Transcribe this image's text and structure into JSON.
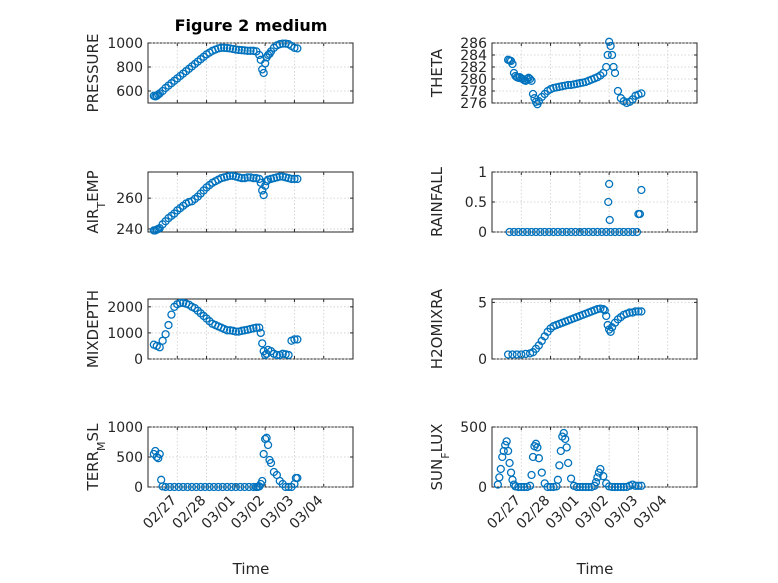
{
  "figure": {
    "title": "Figure 2 medium",
    "xlabel": "Time",
    "series_color": "#0072BD"
  },
  "chart_data": [
    {
      "id": "pressure",
      "type": "scatter",
      "ylabel": "PRESSURE",
      "ylim": [
        500,
        1000
      ],
      "yticks": [
        600,
        800,
        1000
      ],
      "xlim": [
        0,
        7
      ],
      "grid": true,
      "xtick_labels": [
        "02/27",
        "02/28",
        "03/01",
        "03/02",
        "03/03",
        "03/04"
      ],
      "x": [
        0.2,
        0.25,
        0.3,
        0.35,
        0.4,
        0.5,
        0.6,
        0.7,
        0.8,
        0.9,
        1.0,
        1.1,
        1.2,
        1.3,
        1.4,
        1.5,
        1.6,
        1.7,
        1.8,
        1.9,
        2.0,
        2.1,
        2.2,
        2.3,
        2.4,
        2.5,
        2.6,
        2.7,
        2.8,
        2.9,
        3.0,
        3.1,
        3.2,
        3.3,
        3.4,
        3.5,
        3.6,
        3.7,
        3.8,
        3.85,
        3.9,
        3.95,
        4.0,
        4.05,
        4.1,
        4.15,
        4.2,
        4.3,
        4.4,
        4.5,
        4.6,
        4.7,
        4.8,
        4.9,
        5.0,
        5.1
      ],
      "y": [
        560,
        555,
        560,
        570,
        580,
        600,
        625,
        645,
        665,
        685,
        705,
        725,
        745,
        765,
        785,
        805,
        825,
        845,
        865,
        885,
        905,
        920,
        935,
        945,
        955,
        960,
        960,
        958,
        955,
        950,
        945,
        942,
        940,
        938,
        935,
        935,
        935,
        930,
        900,
        860,
        780,
        750,
        830,
        880,
        900,
        910,
        930,
        960,
        980,
        990,
        995,
        995,
        990,
        975,
        960,
        955
      ]
    },
    {
      "id": "theta",
      "type": "scatter",
      "ylabel": "THETA",
      "ylim": [
        276,
        286
      ],
      "yticks": [
        276,
        278,
        280,
        282,
        284,
        286
      ],
      "xlim": [
        0,
        7
      ],
      "grid": true,
      "xtick_labels": [
        "02/27",
        "02/28",
        "03/01",
        "03/02",
        "03/03",
        "03/04"
      ],
      "x": [
        0.55,
        0.6,
        0.65,
        0.7,
        0.75,
        0.8,
        0.85,
        0.9,
        0.95,
        1.0,
        1.05,
        1.1,
        1.15,
        1.2,
        1.25,
        1.3,
        1.35,
        1.4,
        1.45,
        1.5,
        1.55,
        1.6,
        1.7,
        1.8,
        1.9,
        2.0,
        2.1,
        2.2,
        2.3,
        2.4,
        2.5,
        2.6,
        2.7,
        2.8,
        2.9,
        3.0,
        3.1,
        3.2,
        3.3,
        3.4,
        3.5,
        3.6,
        3.7,
        3.8,
        3.9,
        3.95,
        4.0,
        4.05,
        4.1,
        4.15,
        4.2,
        4.3,
        4.4,
        4.5,
        4.6,
        4.7,
        4.8,
        4.9,
        5.0,
        5.1
      ],
      "y": [
        283.2,
        283.1,
        283.0,
        282.5,
        281.0,
        280.5,
        280.3,
        280.2,
        280.3,
        280.1,
        280.0,
        279.8,
        279.7,
        280.0,
        280.2,
        280.0,
        279.7,
        277.5,
        276.8,
        276.2,
        275.8,
        276.3,
        277.0,
        277.5,
        278.0,
        278.3,
        278.5,
        278.6,
        278.7,
        278.8,
        278.9,
        279.0,
        279.0,
        279.1,
        279.2,
        279.3,
        279.4,
        279.5,
        279.7,
        279.9,
        280.1,
        280.3,
        280.6,
        281.0,
        282.0,
        284.0,
        286.2,
        285.5,
        284.0,
        282.0,
        281.0,
        278.0,
        276.8,
        276.3,
        276.0,
        276.2,
        276.6,
        277.2,
        277.4,
        277.6
      ]
    },
    {
      "id": "air_temp",
      "type": "scatter",
      "ylabel": "AIR_TEMP",
      "ylim": [
        238,
        277
      ],
      "yticks": [
        240,
        260
      ],
      "xlim": [
        0,
        7
      ],
      "grid": true,
      "xtick_labels": [
        "02/27",
        "02/28",
        "03/01",
        "03/02",
        "03/03",
        "03/04"
      ],
      "x": [
        0.2,
        0.25,
        0.3,
        0.35,
        0.4,
        0.5,
        0.6,
        0.7,
        0.8,
        0.9,
        1.0,
        1.1,
        1.2,
        1.3,
        1.4,
        1.5,
        1.6,
        1.7,
        1.8,
        1.9,
        2.0,
        2.1,
        2.2,
        2.3,
        2.4,
        2.5,
        2.6,
        2.7,
        2.8,
        2.9,
        3.0,
        3.1,
        3.2,
        3.3,
        3.4,
        3.5,
        3.6,
        3.7,
        3.8,
        3.85,
        3.9,
        3.95,
        4.0,
        4.05,
        4.1,
        4.2,
        4.3,
        4.4,
        4.5,
        4.6,
        4.7,
        4.8,
        4.9,
        5.0,
        5.1
      ],
      "y": [
        239,
        239,
        239.5,
        240,
        240.5,
        243,
        245,
        247,
        248.5,
        250,
        252,
        253.5,
        255,
        256.5,
        257.5,
        258,
        259.5,
        261,
        263,
        265,
        267,
        268.5,
        270,
        271,
        272,
        273,
        273.5,
        274,
        274.5,
        274.5,
        274,
        273.5,
        273,
        273,
        273.5,
        273.5,
        273,
        273,
        272.5,
        270,
        265,
        262,
        268,
        271,
        272,
        272.5,
        273,
        273.5,
        274,
        274,
        273.5,
        273,
        272.5,
        272.5,
        272.5
      ]
    },
    {
      "id": "rainfall",
      "type": "scatter",
      "ylabel": "RAINFALL",
      "ylim": [
        0,
        1
      ],
      "yticks": [
        0,
        0.5,
        1
      ],
      "xlim": [
        0,
        7
      ],
      "grid": true,
      "xtick_labels": [
        "02/27",
        "02/28",
        "03/01",
        "03/02",
        "03/03",
        "03/04"
      ],
      "x": [
        0.6,
        0.75,
        0.9,
        1.05,
        1.2,
        1.35,
        1.5,
        1.65,
        1.8,
        1.95,
        2.1,
        2.25,
        2.4,
        2.55,
        2.7,
        2.85,
        3.0,
        3.15,
        3.3,
        3.45,
        3.6,
        3.75,
        3.9,
        3.97,
        4.0,
        4.02,
        4.05,
        4.2,
        4.35,
        4.5,
        4.65,
        4.8,
        4.95,
        5.0,
        5.05,
        5.1
      ],
      "y": [
        0,
        0,
        0,
        0,
        0,
        0,
        0,
        0,
        0,
        0,
        0,
        0,
        0,
        0,
        0,
        0,
        0,
        0,
        0,
        0,
        0,
        0,
        0,
        0.5,
        0.8,
        0.2,
        0,
        0,
        0,
        0,
        0,
        0,
        0,
        0.3,
        0.3,
        0.7
      ]
    },
    {
      "id": "mixdepth",
      "type": "scatter",
      "ylabel": "MIXDEPTH",
      "ylim": [
        0,
        2300
      ],
      "yticks": [
        0,
        1000,
        2000
      ],
      "xlim": [
        0,
        7
      ],
      "grid": true,
      "xtick_labels": [
        "02/27",
        "02/28",
        "03/01",
        "03/02",
        "03/03",
        "03/04"
      ],
      "x": [
        0.2,
        0.3,
        0.4,
        0.5,
        0.6,
        0.7,
        0.8,
        0.9,
        1.0,
        1.1,
        1.2,
        1.3,
        1.4,
        1.5,
        1.6,
        1.7,
        1.8,
        1.9,
        2.0,
        2.1,
        2.2,
        2.3,
        2.4,
        2.5,
        2.6,
        2.7,
        2.8,
        2.9,
        3.0,
        3.1,
        3.2,
        3.3,
        3.4,
        3.5,
        3.6,
        3.7,
        3.8,
        3.85,
        3.9,
        3.95,
        4.0,
        4.05,
        4.1,
        4.2,
        4.3,
        4.4,
        4.5,
        4.6,
        4.7,
        4.8,
        4.9,
        5.0,
        5.1
      ],
      "y": [
        550,
        500,
        450,
        700,
        950,
        1300,
        1700,
        2000,
        2100,
        2150,
        2150,
        2120,
        2080,
        2000,
        1950,
        1850,
        1750,
        1650,
        1550,
        1450,
        1350,
        1300,
        1250,
        1200,
        1150,
        1100,
        1100,
        1080,
        1050,
        1050,
        1080,
        1100,
        1120,
        1150,
        1180,
        1200,
        1200,
        1000,
        600,
        300,
        150,
        200,
        350,
        300,
        200,
        150,
        150,
        200,
        180,
        150,
        700,
        750,
        750
      ]
    },
    {
      "id": "h2omixra",
      "type": "scatter",
      "ylabel": "H2OMIXRA",
      "ylim": [
        0,
        5.3
      ],
      "yticks": [
        0,
        5
      ],
      "xlim": [
        0,
        7
      ],
      "grid": true,
      "xtick_labels": [
        "02/27",
        "02/28",
        "03/01",
        "03/02",
        "03/03",
        "03/04"
      ],
      "x": [
        0.55,
        0.7,
        0.85,
        1.0,
        1.15,
        1.3,
        1.4,
        1.5,
        1.6,
        1.7,
        1.8,
        1.9,
        2.0,
        2.1,
        2.2,
        2.3,
        2.4,
        2.5,
        2.6,
        2.7,
        2.8,
        2.9,
        3.0,
        3.1,
        3.2,
        3.3,
        3.4,
        3.5,
        3.6,
        3.7,
        3.8,
        3.85,
        3.9,
        3.95,
        4.0,
        4.05,
        4.1,
        4.2,
        4.3,
        4.4,
        4.5,
        4.6,
        4.7,
        4.8,
        4.9,
        5.0,
        5.1
      ],
      "y": [
        0.4,
        0.4,
        0.4,
        0.4,
        0.45,
        0.5,
        0.6,
        0.9,
        1.2,
        1.6,
        2.0,
        2.4,
        2.7,
        2.9,
        3.0,
        3.1,
        3.2,
        3.3,
        3.4,
        3.5,
        3.6,
        3.7,
        3.8,
        3.9,
        4.0,
        4.1,
        4.2,
        4.3,
        4.4,
        4.45,
        4.4,
        4.3,
        3.8,
        3.0,
        2.6,
        2.4,
        2.8,
        3.2,
        3.5,
        3.7,
        3.9,
        4.0,
        4.1,
        4.1,
        4.2,
        4.2,
        4.2
      ]
    },
    {
      "id": "terr_msl",
      "type": "scatter",
      "ylabel": "TERR_MSL",
      "ylim": [
        0,
        1000
      ],
      "yticks": [
        0,
        500,
        1000
      ],
      "xlim": [
        0,
        7
      ],
      "grid": true,
      "xtick_labels": [
        "02/27",
        "02/28",
        "03/01",
        "03/02",
        "03/03",
        "03/04"
      ],
      "x": [
        0.2,
        0.25,
        0.3,
        0.35,
        0.4,
        0.45,
        0.5,
        0.6,
        0.75,
        0.9,
        1.05,
        1.2,
        1.35,
        1.5,
        1.65,
        1.8,
        1.95,
        2.1,
        2.25,
        2.4,
        2.55,
        2.7,
        2.85,
        3.0,
        3.15,
        3.3,
        3.45,
        3.6,
        3.7,
        3.75,
        3.8,
        3.85,
        3.9,
        3.95,
        4.0,
        4.05,
        4.1,
        4.15,
        4.2,
        4.3,
        4.4,
        4.5,
        4.6,
        4.7,
        4.8,
        4.9,
        5.0,
        5.05,
        5.1
      ],
      "y": [
        550,
        600,
        500,
        480,
        550,
        120,
        10,
        0,
        0,
        0,
        0,
        0,
        0,
        0,
        0,
        0,
        0,
        0,
        0,
        0,
        0,
        0,
        0,
        0,
        0,
        0,
        0,
        0,
        0,
        0,
        10,
        50,
        100,
        550,
        800,
        820,
        700,
        450,
        400,
        250,
        200,
        100,
        50,
        0,
        0,
        0,
        50,
        150,
        150
      ]
    },
    {
      "id": "sun_flux",
      "type": "scatter",
      "ylabel": "SUN_FLUX",
      "ylim": [
        0,
        500
      ],
      "yticks": [
        0,
        500
      ],
      "xlim": [
        0,
        7
      ],
      "grid": true,
      "xtick_labels": [
        "02/27",
        "02/28",
        "03/01",
        "03/02",
        "03/03",
        "03/04"
      ],
      "x": [
        0.2,
        0.25,
        0.3,
        0.35,
        0.4,
        0.45,
        0.5,
        0.55,
        0.6,
        0.65,
        0.7,
        0.75,
        0.8,
        0.9,
        1.0,
        1.1,
        1.2,
        1.3,
        1.35,
        1.4,
        1.45,
        1.5,
        1.55,
        1.6,
        1.7,
        1.8,
        1.9,
        2.0,
        2.1,
        2.2,
        2.25,
        2.3,
        2.35,
        2.4,
        2.45,
        2.5,
        2.55,
        2.6,
        2.7,
        2.8,
        2.9,
        3.0,
        3.1,
        3.2,
        3.3,
        3.4,
        3.5,
        3.55,
        3.6,
        3.65,
        3.7,
        3.8,
        3.9,
        4.0,
        4.1,
        4.2,
        4.3,
        4.4,
        4.5,
        4.6,
        4.7,
        4.8,
        4.9,
        5.0,
        5.1
      ],
      "y": [
        20,
        80,
        150,
        250,
        300,
        350,
        380,
        300,
        200,
        120,
        60,
        20,
        5,
        0,
        0,
        0,
        0,
        10,
        100,
        250,
        340,
        360,
        330,
        240,
        120,
        30,
        0,
        0,
        0,
        5,
        60,
        180,
        300,
        420,
        450,
        400,
        330,
        200,
        70,
        10,
        0,
        0,
        0,
        0,
        0,
        0,
        10,
        40,
        80,
        120,
        150,
        90,
        30,
        5,
        0,
        0,
        0,
        0,
        0,
        0,
        10,
        20,
        10,
        10,
        10
      ]
    }
  ]
}
